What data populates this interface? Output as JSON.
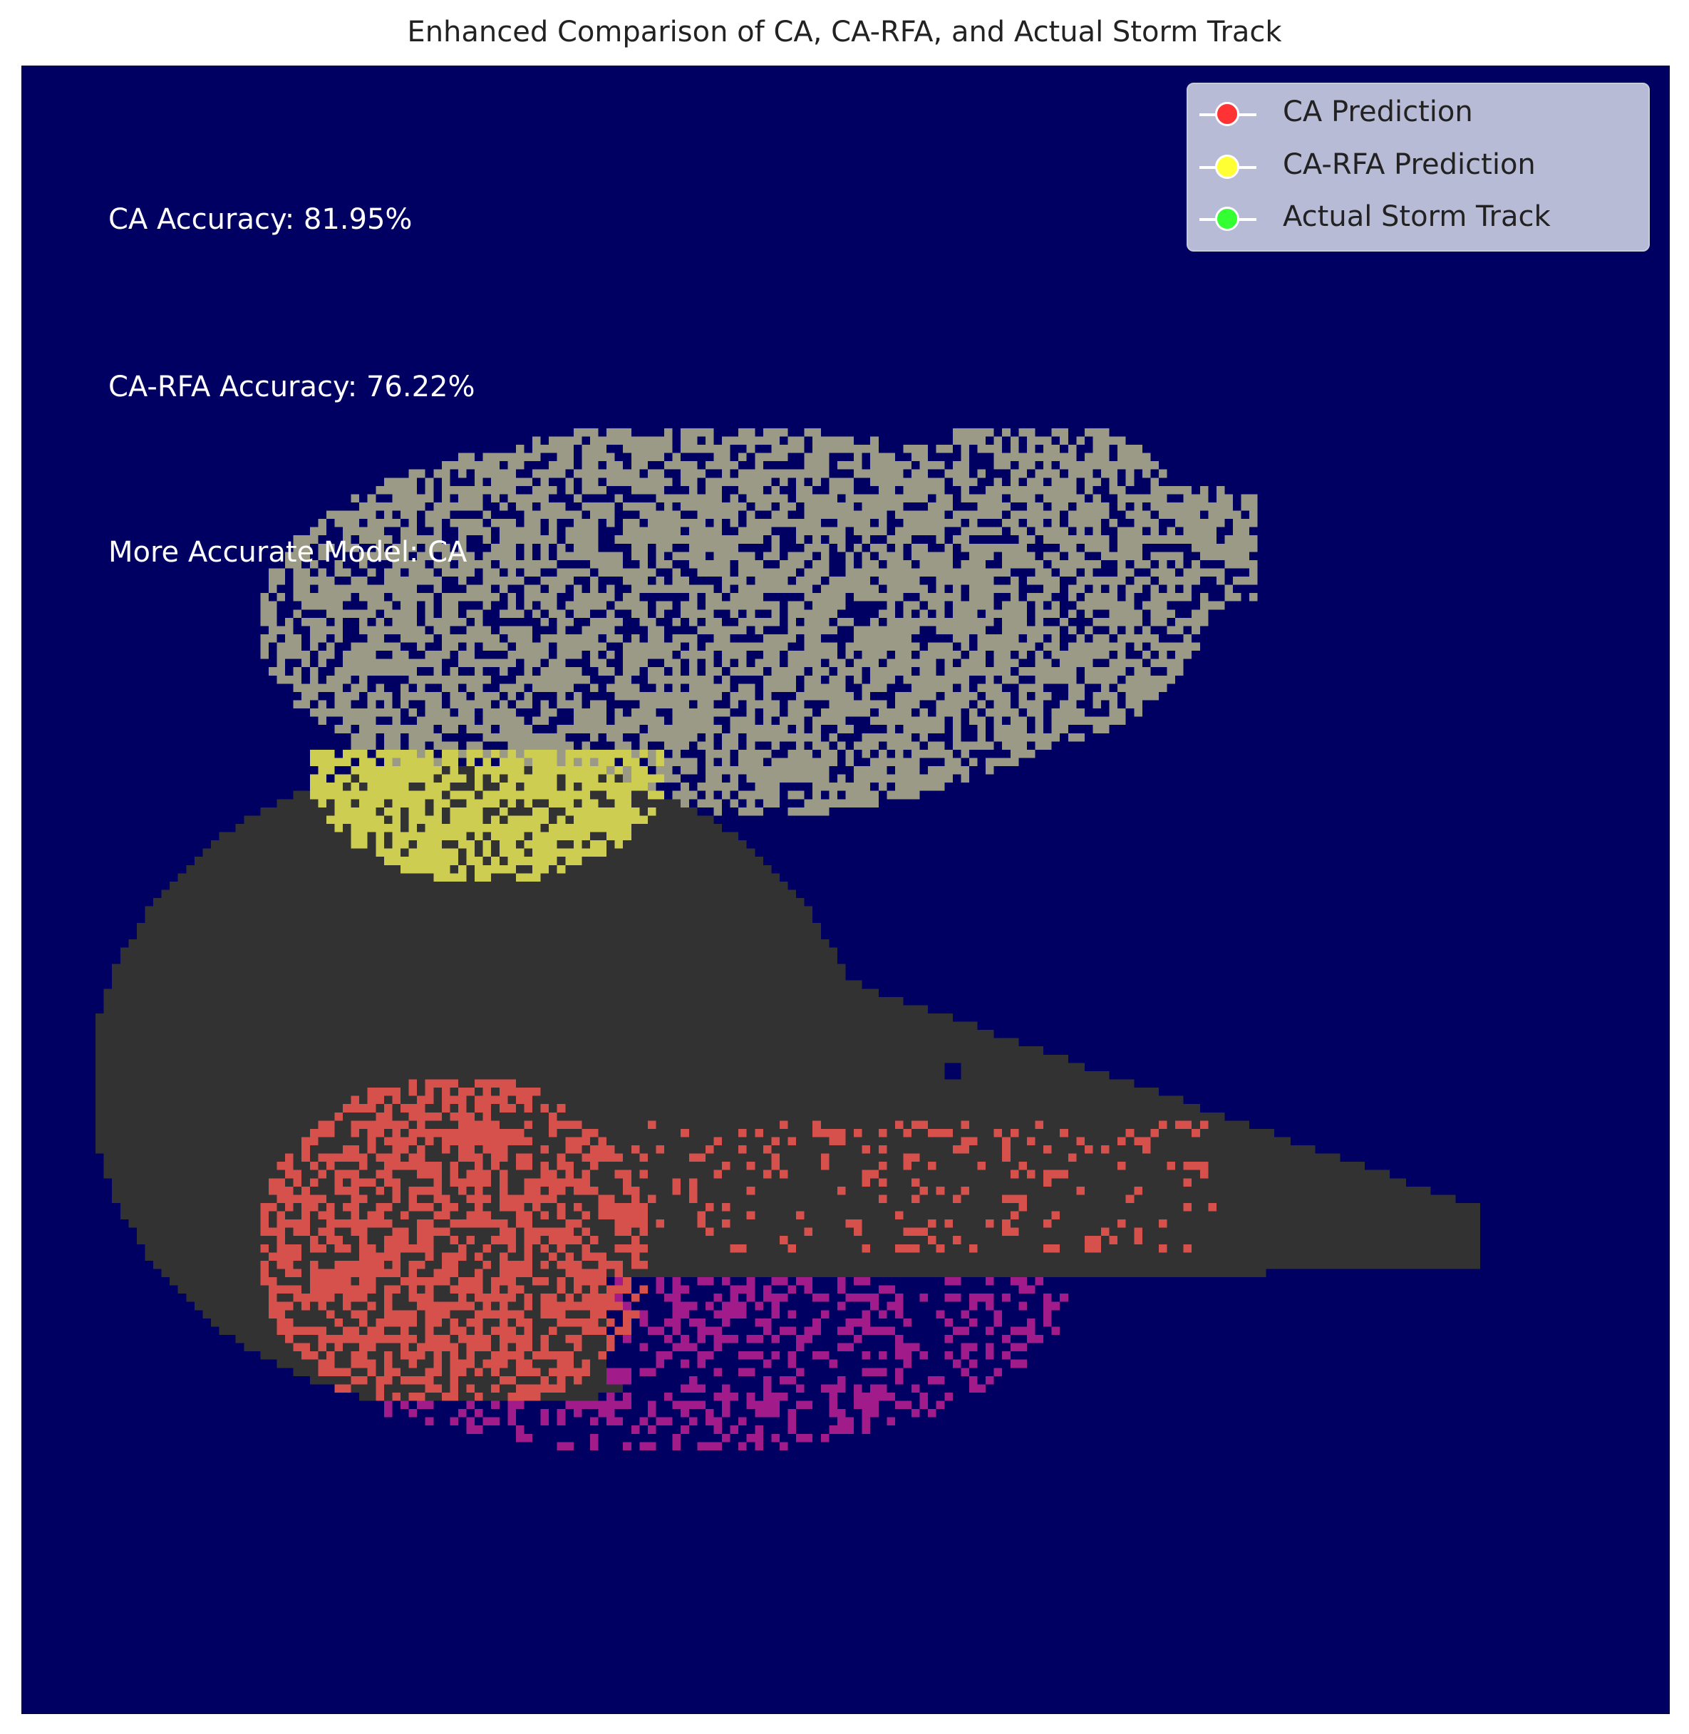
{
  "chart_title": "Enhanced Comparison of CA, CA-RFA, and Actual Storm Track",
  "chart_data": {
    "type": "heatmap",
    "title": "Enhanced Comparison of CA, CA-RFA, and Actual Storm Track",
    "grid_size": [
      200,
      200
    ],
    "axes_visible": false,
    "colormap": "plasma",
    "legend": {
      "placement": "top-right",
      "entries": [
        {
          "label": "CA Prediction",
          "color": "#ff3333"
        },
        {
          "label": "CA-RFA Prediction",
          "color": "#ffff33"
        },
        {
          "label": "Actual Storm Track",
          "color": "#33ff33"
        }
      ]
    },
    "annotations": [
      "CA Accuracy: 81.95%",
      "CA-RFA Accuracy: 76.22%",
      "More Accurate Model: CA"
    ],
    "metrics": {
      "ca_accuracy_percent": 81.95,
      "ca_rfa_accuracy_percent": 76.22,
      "more_accurate_model": "CA"
    },
    "colors": {
      "background": "#000062",
      "ca_rfa_scatter": "#9a9a86",
      "actual_track": "#323232",
      "ca_rfa_over_track": "#cdcd52",
      "ca_over_track": "#d6504c",
      "ca_scatter": "#a21b8a"
    }
  }
}
